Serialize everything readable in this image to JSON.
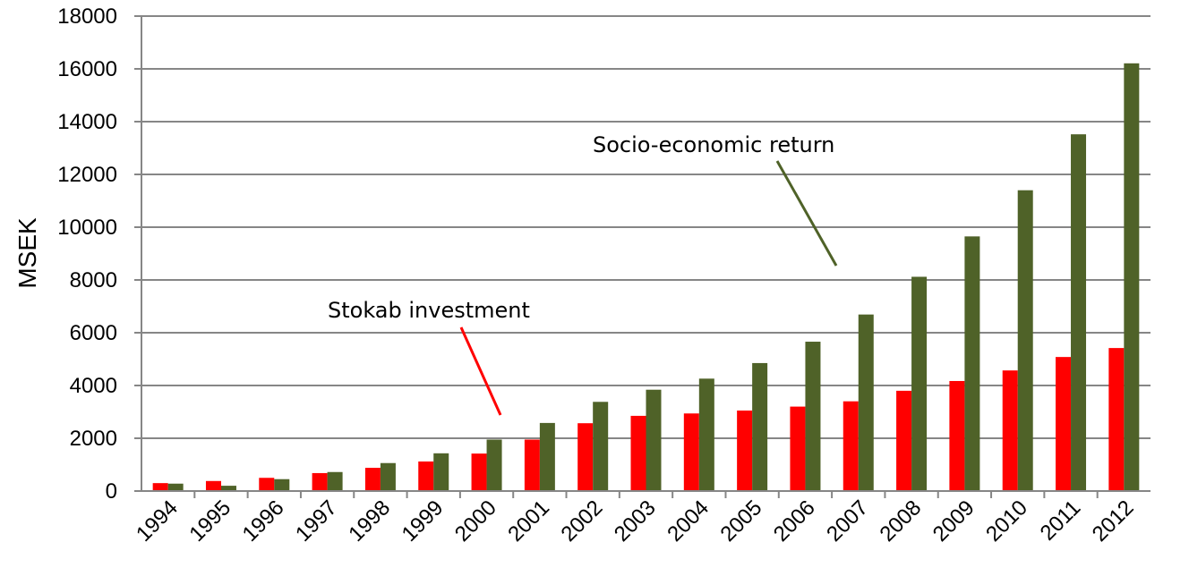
{
  "chart_data": {
    "type": "bar",
    "title": "",
    "xlabel": "",
    "ylabel": "MSEK",
    "ylim": [
      0,
      18000
    ],
    "yticks": [
      0,
      2000,
      4000,
      6000,
      8000,
      10000,
      12000,
      14000,
      16000,
      18000
    ],
    "grid": true,
    "legend": "none",
    "categories": [
      "1994",
      "1995",
      "1996",
      "1997",
      "1998",
      "1999",
      "2000",
      "2001",
      "2002",
      "2003",
      "2004",
      "2005",
      "2006",
      "2007",
      "2008",
      "2009",
      "2010",
      "2011",
      "2012"
    ],
    "series": [
      {
        "color": "#ff0000",
        "values": [
          300,
          380,
          500,
          680,
          880,
          1120,
          1420,
          1950,
          2570,
          2850,
          2940,
          3050,
          3200,
          3400,
          3800,
          4170,
          4570,
          5080,
          5420
        ]
      },
      {
        "color": "#4f6228",
        "values": [
          280,
          200,
          450,
          720,
          1060,
          1430,
          1950,
          2580,
          3380,
          3840,
          4260,
          4850,
          5660,
          6690,
          8120,
          9650,
          11400,
          13520,
          16210
        ]
      }
    ],
    "annotations": [
      {
        "text": "Socio-economic return",
        "series_index": 1,
        "color": "#4f6228"
      },
      {
        "text": "Stokab investment",
        "series_index": 0,
        "color": "#ff0000"
      }
    ]
  }
}
